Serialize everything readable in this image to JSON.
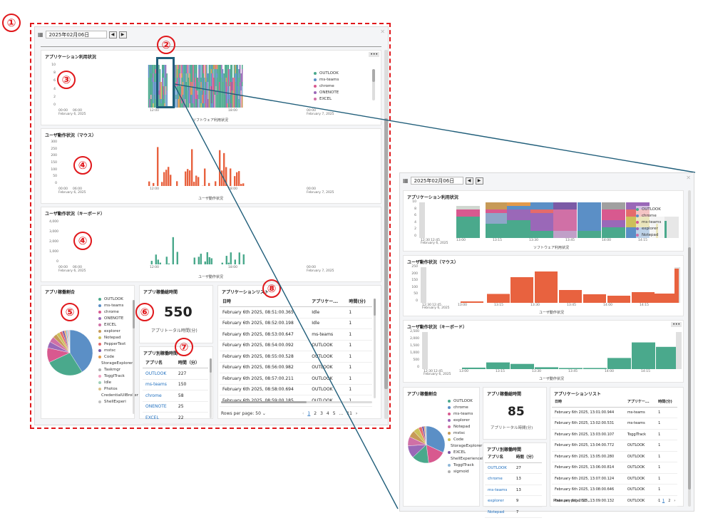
{
  "callouts": {
    "c1": "①",
    "c2": "②",
    "c3": "③",
    "c4a": "④",
    "c4b": "④",
    "c5": "⑤",
    "c6": "⑥",
    "c7": "⑦",
    "c8": "⑧"
  },
  "date": "2025年02月06日",
  "nav": {
    "prev": "◀",
    "next": "▶"
  },
  "app_usage": {
    "title": "アプリケーション利用状況",
    "xlabel": "ソフトウェア利用状況",
    "menu": "•••"
  },
  "mouse": {
    "title": "ユーザ動作状況（マウス）",
    "xlabel": "ユーザ動作状況"
  },
  "keyboard": {
    "title": "ユーザ動作状況（キーボード）",
    "xlabel": "ユーザ動作状況"
  },
  "x_ticks": {
    "t1": "00:00",
    "t1b": "February 6, 2025",
    "t2": "06:00",
    "t3": "12:00",
    "t4": "18:00",
    "t5": "00:00",
    "t5b": "February 7, 2025"
  },
  "y_ticks_app": [
    "10",
    "8",
    "6",
    "4",
    "2",
    "0"
  ],
  "y_ticks_mouse": [
    "300",
    "250",
    "200",
    "150",
    "100",
    "50",
    "0"
  ],
  "y_ticks_kb": [
    "4,000",
    "3,000",
    "2,000",
    "1,000",
    "0"
  ],
  "app_legend": [
    "OUTLOOK",
    "ms-teams",
    "chrome",
    "ONENOTE",
    "EXCEL"
  ],
  "pie": {
    "title": "アプリ稼働割合",
    "items": [
      "OUTLOOK",
      "ms-teams",
      "chrome",
      "ONENOTE",
      "EXCEL",
      "explorer",
      "Notepad",
      "PepperText",
      "mstsc",
      "Code",
      "StorageExplorer",
      "Taskmgr",
      "ToggITrack",
      "Idle",
      "Photos",
      "CredentialUIBroker",
      "ShellExperi"
    ]
  },
  "total": {
    "title": "アプリ稼働総時間",
    "value": "550",
    "label": "アプリトータル時間(分)"
  },
  "app_time": {
    "title": "アプリ別稼働時間",
    "col1": "アプリ名",
    "col2": "時間（分）",
    "rows": [
      [
        "OUTLOOK",
        "227"
      ],
      [
        "ms-teams",
        "150"
      ],
      [
        "chrome",
        "58"
      ],
      [
        "ONENOTE",
        "25"
      ],
      [
        "EXCEL",
        "22"
      ]
    ]
  },
  "app_list": {
    "title": "アプリケーションリスト",
    "col1": "日時",
    "col2": "アプリケー...",
    "col3": "時間(分)",
    "rows": [
      [
        "February 6th 2025, 08:51:00.365",
        "Idle",
        "1"
      ],
      [
        "February 6th 2025, 08:52:00.198",
        "Idle",
        "1"
      ],
      [
        "February 6th 2025, 08:53:00.647",
        "ms-teams",
        "1"
      ],
      [
        "February 6th 2025, 08:54:00.092",
        "OUTLOOK",
        "1"
      ],
      [
        "February 6th 2025, 08:55:00.528",
        "OUTLOOK",
        "1"
      ],
      [
        "February 6th 2025, 08:56:00.982",
        "OUTLOOK",
        "1"
      ],
      [
        "February 6th 2025, 08:57:00.211",
        "OUTLOOK",
        "1"
      ],
      [
        "February 6th 2025, 08:58:00.694",
        "OUTLOOK",
        "1"
      ],
      [
        "February 6th 2025, 08:59:00.185",
        "OUTLOOK",
        "1"
      ]
    ],
    "rows_per_page": "Rows per page: 50 ⌄",
    "pages": [
      "1",
      "2",
      "3",
      "4",
      "5",
      "...",
      "11"
    ]
  },
  "zoom": {
    "date": "2025年02月06日",
    "app_usage": {
      "title": "アプリケーション利用状況",
      "xlabel": "ソフトウェア利用状況"
    },
    "mouse": {
      "title": "ユーザ動作状況（マウス）",
      "xlabel": "ユーザ動作状況"
    },
    "keyboard": {
      "title": "ユーザ動作状況（キーボード）",
      "xlabel": "ユーザ動作状況",
      "menu": "•••"
    },
    "x_ticks": [
      "12:30",
      "12:45",
      "13:00",
      "13:15",
      "13:30",
      "13:45",
      "14:00",
      "14:15"
    ],
    "x_tick_date": "February 6, 2025",
    "y_ticks_app": [
      "10",
      "8",
      "6",
      "4",
      "2",
      "0"
    ],
    "y_ticks_mouse": [
      "250",
      "200",
      "150",
      "100",
      "50",
      "0"
    ],
    "y_ticks_kb": [
      "2,500",
      "2,000",
      "1,500",
      "1,000",
      "500",
      "0"
    ],
    "app_legend": [
      "OUTLOOK",
      "chrome",
      "ms-teams",
      "explorer",
      "Notepad"
    ],
    "pie": {
      "title": "アプリ稼働割合",
      "items": [
        "OUTLOOK",
        "chrome",
        "ms-teams",
        "explorer",
        "Notepad",
        "mstsc",
        "Code",
        "StorageExplorer",
        "EXCEL",
        "ShellExperienceHost",
        "ToggITrack",
        "sigmoid"
      ]
    },
    "total": {
      "title": "アプリ稼働総時間",
      "value": "85",
      "label": "アプリトータル時間(分)"
    },
    "app_time": {
      "title": "アプリ別稼働時間",
      "col1": "アプリ名",
      "col2": "時間（分）",
      "rows": [
        [
          "OUTLOOK",
          "27"
        ],
        [
          "chrome",
          "13"
        ],
        [
          "ms-teams",
          "13"
        ],
        [
          "explorer",
          "9"
        ],
        [
          "Notepad",
          "7"
        ]
      ]
    },
    "app_list": {
      "title": "アプリケーションリスト",
      "col1": "日時",
      "col2": "アプリケー...",
      "col3": "時間(分)",
      "rows": [
        [
          "February 6th 2025, 13:01:00.944",
          "ms-teams",
          "1"
        ],
        [
          "February 6th 2025, 13:02:00.531",
          "ms-teams",
          "1"
        ],
        [
          "February 6th 2025, 13:03:00.107",
          "ToggITrack",
          "1"
        ],
        [
          "February 6th 2025, 13:04:00.772",
          "OUTLOOK",
          "1"
        ],
        [
          "February 6th 2025, 13:05:00.280",
          "OUTLOOK",
          "1"
        ],
        [
          "February 6th 2025, 13:06:00.814",
          "OUTLOOK",
          "1"
        ],
        [
          "February 6th 2025, 13:07:00.124",
          "OUTLOOK",
          "1"
        ],
        [
          "February 6th 2025, 13:08:00.646",
          "OUTLOOK",
          "1"
        ],
        [
          "February 6th 2025, 13:09:00.132",
          "OUTLOOK",
          "1"
        ]
      ],
      "rows_per_page": "Rows per page: 50 ⌄",
      "pages": [
        "1",
        "2"
      ]
    }
  },
  "colors": {
    "outlook": "#4aa98c",
    "teams": "#5b8fc6",
    "chrome": "#d8598f",
    "onenote": "#9a68b8",
    "excel": "#d070a6",
    "mouse": "#e8623f",
    "keyboard": "#4aa98c",
    "accent_red": "#e0171b",
    "connector": "#205e7a"
  }
}
